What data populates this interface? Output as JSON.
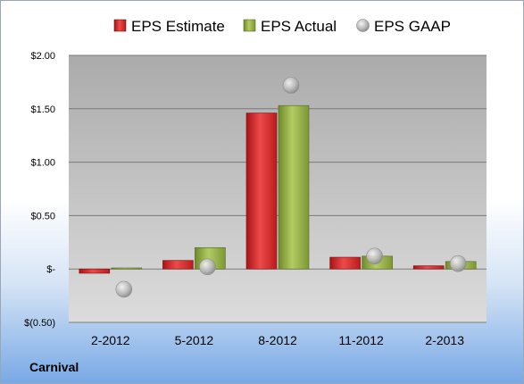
{
  "company": "Carnival",
  "chart_data": {
    "type": "bar",
    "categories": [
      "2-2012",
      "5-2012",
      "8-2012",
      "11-2012",
      "2-2013"
    ],
    "series": [
      {
        "name": "EPS Estimate",
        "kind": "bar",
        "color": "#d42a2a",
        "values": [
          -0.04,
          0.08,
          1.46,
          0.11,
          0.03
        ]
      },
      {
        "name": "EPS Actual",
        "kind": "bar",
        "color": "#8eaa3e",
        "values": [
          0.01,
          0.2,
          1.53,
          0.12,
          0.07
        ]
      },
      {
        "name": "EPS GAAP",
        "kind": "marker",
        "color": "#b8b8b8",
        "values": [
          -0.19,
          0.02,
          1.72,
          0.12,
          0.05
        ]
      }
    ],
    "y_ticks": [
      {
        "value": 2.0,
        "label": "$2.00"
      },
      {
        "value": 1.5,
        "label": "$1.50"
      },
      {
        "value": 1.0,
        "label": "$1.00"
      },
      {
        "value": 0.5,
        "label": "$0.50"
      },
      {
        "value": 0.0,
        "label": "$-"
      },
      {
        "value": -0.5,
        "label": "$(0.50)"
      }
    ],
    "ylim": [
      -0.5,
      2.0
    ],
    "grid": true,
    "legend_position": "top",
    "title": "",
    "xlabel": "",
    "ylabel": ""
  }
}
